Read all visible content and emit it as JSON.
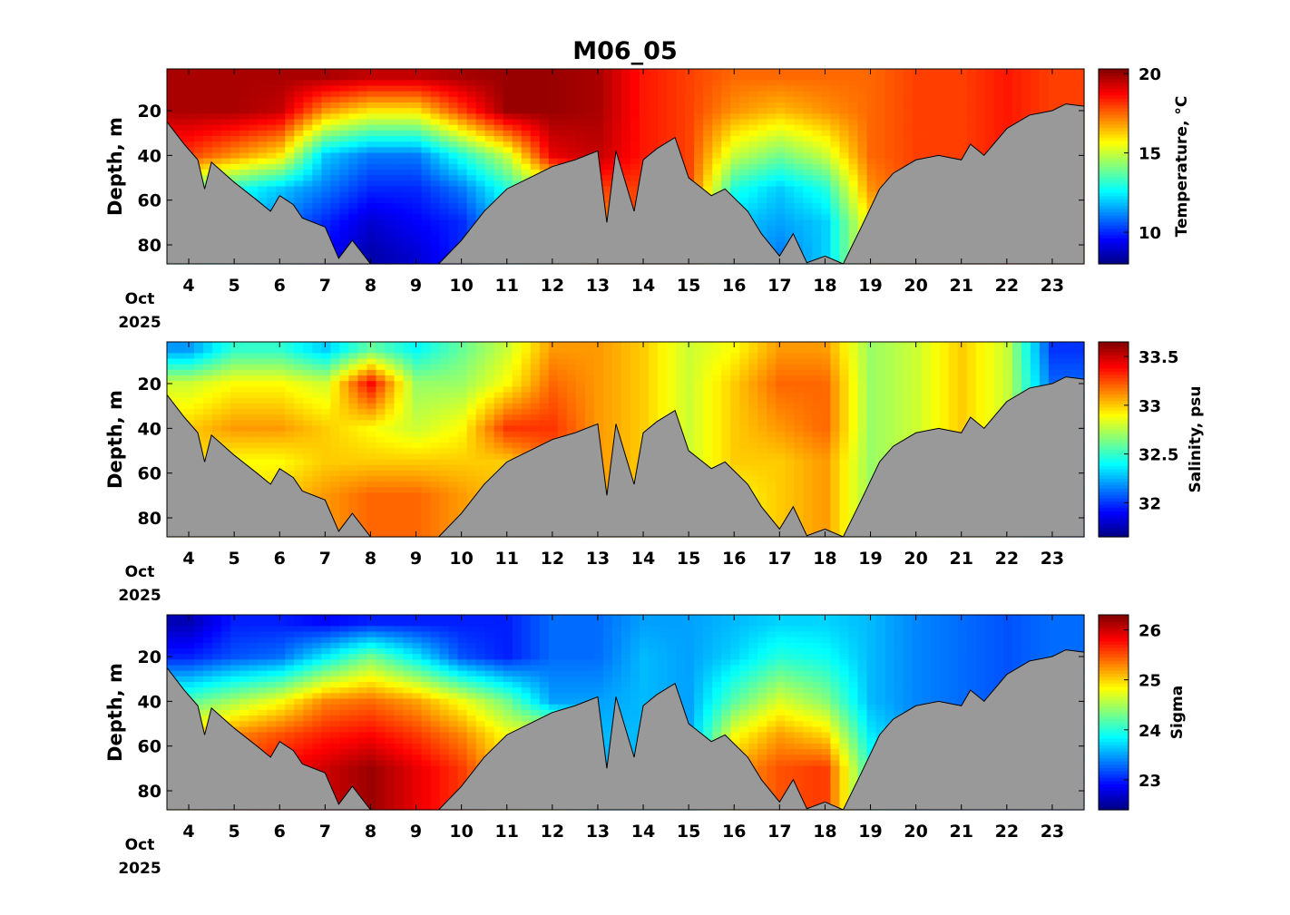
{
  "chart_data": {
    "type": "heatmap",
    "title": "M06_05",
    "x_unit_label": [
      "Oct",
      "2025"
    ],
    "xlim": [
      3.52,
      23.7
    ],
    "x_ticks": [
      4,
      5,
      6,
      7,
      8,
      9,
      10,
      11,
      12,
      13,
      14,
      15,
      16,
      17,
      18,
      19,
      20,
      21,
      22,
      23
    ],
    "ylim": [
      1.35,
      88.5
    ],
    "y_ticks": [
      20,
      40,
      60,
      80
    ],
    "ylabel": "Depth, m",
    "grid_days": [
      4,
      5,
      6,
      7,
      8,
      9,
      10,
      11,
      12,
      13,
      14,
      15,
      16,
      17,
      18,
      19,
      20,
      21,
      22,
      23
    ],
    "grid_depths": [
      5,
      20,
      40,
      55,
      70,
      85
    ],
    "bottom_depth": [
      [
        3.52,
        25
      ],
      [
        3.9,
        35
      ],
      [
        4.2,
        42
      ],
      [
        4.35,
        55
      ],
      [
        4.5,
        43
      ],
      [
        5.0,
        52
      ],
      [
        5.5,
        60
      ],
      [
        5.8,
        65
      ],
      [
        6.0,
        58
      ],
      [
        6.3,
        62
      ],
      [
        6.5,
        68
      ],
      [
        7.0,
        72
      ],
      [
        7.3,
        86
      ],
      [
        7.6,
        78
      ],
      [
        8.0,
        90
      ],
      [
        8.7,
        90
      ],
      [
        9.5,
        90
      ],
      [
        10.0,
        78
      ],
      [
        10.5,
        65
      ],
      [
        11.0,
        55
      ],
      [
        11.5,
        50
      ],
      [
        12.0,
        45
      ],
      [
        12.5,
        42
      ],
      [
        13.0,
        38
      ],
      [
        13.2,
        70
      ],
      [
        13.4,
        38
      ],
      [
        13.8,
        65
      ],
      [
        14.0,
        42
      ],
      [
        14.3,
        37
      ],
      [
        14.7,
        32
      ],
      [
        15.0,
        50
      ],
      [
        15.5,
        58
      ],
      [
        15.8,
        55
      ],
      [
        16.3,
        65
      ],
      [
        16.6,
        75
      ],
      [
        17.0,
        85
      ],
      [
        17.3,
        75
      ],
      [
        17.6,
        88
      ],
      [
        18.0,
        85
      ],
      [
        18.4,
        90
      ],
      [
        18.8,
        72
      ],
      [
        19.2,
        55
      ],
      [
        19.5,
        48
      ],
      [
        20.0,
        42
      ],
      [
        20.5,
        40
      ],
      [
        21.0,
        42
      ],
      [
        21.2,
        35
      ],
      [
        21.5,
        40
      ],
      [
        22.0,
        28
      ],
      [
        22.5,
        22
      ],
      [
        23.0,
        20
      ],
      [
        23.3,
        17
      ],
      [
        23.7,
        18
      ]
    ],
    "panels": [
      {
        "name": "temperature",
        "colorbar_label": "Temperature, °C",
        "clim": [
          8,
          20.3
        ],
        "colorbar_ticks": [
          "10",
          "15",
          "20"
        ],
        "colorbar_tick_values": [
          10,
          15,
          20
        ],
        "values": [
          [
            19.8,
            19.8,
            18,
            14,
            13,
            13
          ],
          [
            19.8,
            19.8,
            17,
            13,
            12,
            12
          ],
          [
            19.8,
            19.5,
            16,
            12,
            11,
            11
          ],
          [
            19.8,
            17,
            12,
            11,
            10,
            9.5
          ],
          [
            19.5,
            16,
            11,
            10,
            9,
            8.5
          ],
          [
            19.5,
            16,
            11,
            10,
            9.5,
            9
          ],
          [
            19.8,
            18,
            13,
            11,
            10,
            10
          ],
          [
            20,
            20,
            15,
            13,
            12,
            12
          ],
          [
            20,
            20,
            19,
            15,
            14,
            14
          ],
          [
            19.8,
            19.8,
            19.5,
            18,
            17,
            17
          ],
          [
            18.5,
            18.5,
            18.5,
            18,
            18,
            18
          ],
          [
            18,
            18,
            18,
            18,
            18,
            18
          ],
          [
            17.5,
            17,
            15,
            13,
            12,
            12
          ],
          [
            17.5,
            16.5,
            14,
            12,
            11.5,
            11
          ],
          [
            17.5,
            17,
            15,
            13,
            12,
            12
          ],
          [
            17.5,
            17.5,
            17.5,
            17,
            16,
            16
          ],
          [
            18,
            18,
            18,
            18,
            18,
            18
          ],
          [
            18,
            18,
            18,
            18,
            18,
            18
          ],
          [
            18.5,
            18.5,
            18.5,
            18.5,
            18.5,
            18.5
          ],
          [
            18,
            18,
            18,
            18,
            18,
            18
          ]
        ]
      },
      {
        "name": "salinity",
        "colorbar_label": "Salinity, psu",
        "clim": [
          31.65,
          33.65
        ],
        "colorbar_ticks": [
          "32",
          "32.5",
          "33",
          "33.5"
        ],
        "colorbar_tick_values": [
          32,
          32.5,
          33,
          33.5
        ],
        "values": [
          [
            32.2,
            32.8,
            33,
            33,
            33,
            33
          ],
          [
            32.5,
            32.9,
            33.1,
            32.9,
            32.9,
            32.9
          ],
          [
            32.5,
            32.9,
            33.1,
            32.9,
            33,
            33
          ],
          [
            32.3,
            32.8,
            33,
            33,
            33.1,
            33.1
          ],
          [
            32.6,
            33.4,
            32.9,
            33,
            33.2,
            33.2
          ],
          [
            32.4,
            32.7,
            32.8,
            33,
            33.2,
            33.2
          ],
          [
            32.6,
            32.7,
            32.9,
            33,
            33.1,
            33.1
          ],
          [
            32.8,
            32.9,
            33.3,
            33,
            33,
            33
          ],
          [
            33.1,
            33.2,
            33.3,
            33.2,
            33.2,
            33.2
          ],
          [
            33.1,
            33.1,
            33.1,
            33.1,
            33.1,
            33.1
          ],
          [
            33,
            33,
            33,
            33,
            33,
            33
          ],
          [
            32.8,
            32.8,
            32.8,
            32.8,
            32.8,
            32.8
          ],
          [
            32.9,
            33,
            33,
            33,
            32.9,
            32.9
          ],
          [
            33.1,
            33.2,
            33.1,
            33,
            33,
            33
          ],
          [
            33.1,
            33.2,
            33.2,
            33.1,
            33.1,
            33.1
          ],
          [
            32.7,
            32.7,
            32.7,
            32.7,
            32.7,
            32.7
          ],
          [
            32.8,
            32.8,
            32.8,
            32.8,
            32.8,
            32.8
          ],
          [
            33,
            33,
            33,
            33,
            33,
            33
          ],
          [
            32.8,
            32.8,
            32.8,
            32.8,
            32.8,
            32.8
          ],
          [
            32,
            32.1,
            32.1,
            32.1,
            32.1,
            32.1
          ]
        ]
      },
      {
        "name": "sigma",
        "colorbar_label": "Sigma",
        "clim": [
          22.4,
          26.3
        ],
        "colorbar_ticks": [
          "23",
          "24",
          "25",
          "26"
        ],
        "colorbar_tick_values": [
          23,
          24,
          25,
          26
        ],
        "values": [
          [
            22.6,
            23,
            24.2,
            25,
            25,
            25
          ],
          [
            23,
            23.2,
            24.5,
            25.3,
            25.5,
            25.5
          ],
          [
            23,
            23.3,
            24.8,
            25.5,
            25.8,
            25.8
          ],
          [
            22.9,
            23.8,
            25.3,
            25.7,
            26,
            26
          ],
          [
            23,
            24.3,
            25.4,
            25.8,
            26.2,
            26.2
          ],
          [
            23,
            23.8,
            25.2,
            25.6,
            25.9,
            25.9
          ],
          [
            23,
            23.2,
            24.8,
            25.3,
            25.6,
            25.6
          ],
          [
            23,
            23,
            24.3,
            24.8,
            25,
            25
          ],
          [
            23.3,
            23.3,
            23.5,
            24.8,
            24.8,
            24.8
          ],
          [
            23.3,
            23.3,
            23.5,
            23.6,
            23.6,
            23.6
          ],
          [
            23.5,
            23.6,
            23.6,
            23.6,
            23.6,
            23.6
          ],
          [
            23.5,
            23.5,
            23.5,
            23.5,
            23.5,
            23.5
          ],
          [
            23.6,
            23.7,
            24.2,
            24.8,
            25.2,
            25.2
          ],
          [
            23.7,
            24,
            24.7,
            25.2,
            25.5,
            25.5
          ],
          [
            23.7,
            23.9,
            24.4,
            25,
            25.6,
            25.6
          ],
          [
            23.6,
            23.6,
            23.6,
            23.8,
            24,
            24
          ],
          [
            23.4,
            23.4,
            23.4,
            23.4,
            23.4,
            23.4
          ],
          [
            23.3,
            23.3,
            23.3,
            23.3,
            23.3,
            23.3
          ],
          [
            23.2,
            23.2,
            23.2,
            23.2,
            23.2,
            23.2
          ],
          [
            23.3,
            23.3,
            23.3,
            23.3,
            23.3,
            23.3
          ]
        ]
      }
    ],
    "bottom_color": "#999999"
  }
}
